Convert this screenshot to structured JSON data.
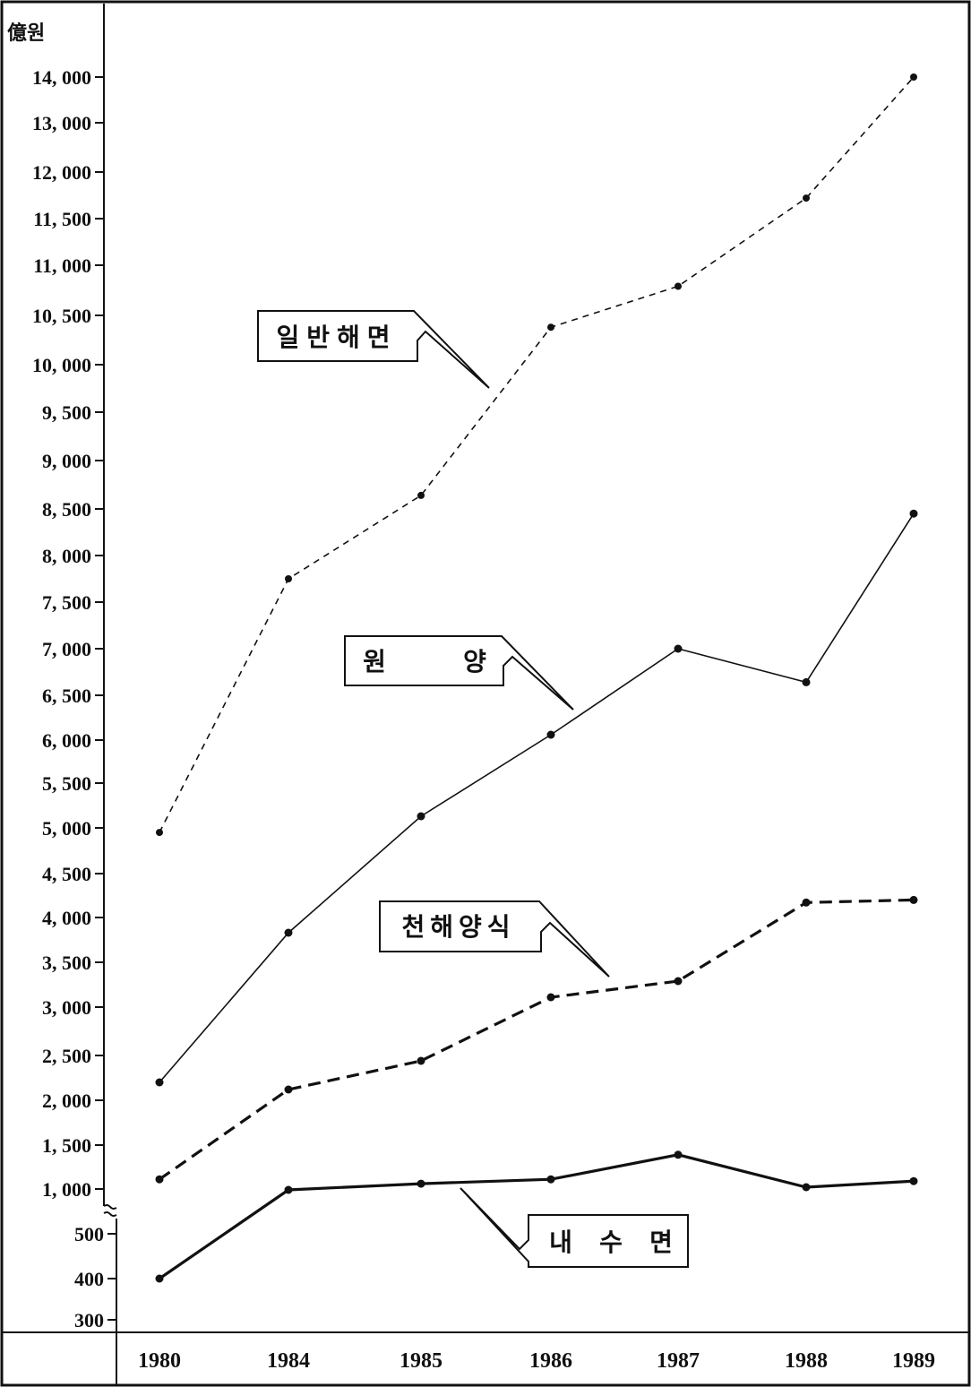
{
  "chart_data": {
    "type": "line",
    "unit_label": "億원",
    "categories": [
      "1980",
      "1984",
      "1985",
      "1986",
      "1987",
      "1988",
      "1989"
    ],
    "y_tick_labels": [
      "14, 000",
      "13, 000",
      "12, 000",
      "11, 500",
      "11, 000",
      "10, 500",
      "10, 000",
      "9, 500",
      "9, 000",
      "8, 500",
      "8, 000",
      "7, 500",
      "7, 000",
      "6, 500",
      "6, 000",
      "5, 500",
      "5, 000",
      "4, 500",
      "4, 000",
      "3, 500",
      "3, 000",
      "2, 500",
      "2, 000",
      "1, 500",
      "1, 000",
      "500",
      "400",
      "300"
    ],
    "axis_break": "between 500 and 1,000",
    "grid": false,
    "series": [
      {
        "name": "일반해면",
        "style": "dashed-thin",
        "values": [
          4950,
          7750,
          8640,
          10380,
          10790,
          11720,
          14000
        ]
      },
      {
        "name": "원 양",
        "style": "solid-thin",
        "values": [
          2200,
          3830,
          5130,
          6060,
          7000,
          6640,
          8450
        ]
      },
      {
        "name": "천해양식",
        "style": "dashed-thick",
        "values": [
          1110,
          2120,
          2440,
          3110,
          3290,
          4170,
          4200
        ]
      },
      {
        "name": "내 수 면",
        "style": "solid-thick",
        "values": [
          400,
          990,
          1060,
          1110,
          1390,
          1020,
          1090
        ]
      }
    ],
    "callout_labels": [
      "일반해면",
      "원",
      "양",
      "천해양식",
      "내",
      "수",
      "면"
    ]
  }
}
